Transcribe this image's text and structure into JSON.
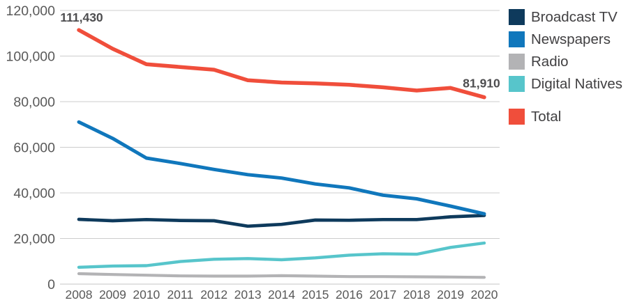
{
  "chart_data": {
    "type": "line",
    "title": "",
    "xlabel": "",
    "ylabel": "",
    "x": [
      "2008",
      "2009",
      "2010",
      "2011",
      "2012",
      "2013",
      "2014",
      "2015",
      "2016",
      "2017",
      "2018",
      "2019",
      "2020"
    ],
    "ylim": [
      0,
      120000
    ],
    "grid": true,
    "legend_position": "right",
    "y_ticks": [
      {
        "value": 0,
        "label": "0"
      },
      {
        "value": 20000,
        "label": "20,000"
      },
      {
        "value": 40000,
        "label": "40,000"
      },
      {
        "value": 60000,
        "label": "60,000"
      },
      {
        "value": 80000,
        "label": "80,000"
      },
      {
        "value": 100000,
        "label": "100,000"
      },
      {
        "value": 120000,
        "label": "120,000"
      }
    ],
    "series": [
      {
        "name": "Broadcast TV",
        "color": "#0E3A5C",
        "group": "component",
        "values": [
          28390,
          27800,
          28300,
          27900,
          27800,
          25400,
          26200,
          28100,
          28000,
          28300,
          28300,
          29500,
          30100
        ]
      },
      {
        "name": "Newspapers",
        "color": "#1077BC",
        "group": "component",
        "values": [
          71070,
          63900,
          55260,
          52900,
          50300,
          48000,
          46500,
          43900,
          42200,
          39000,
          37400,
          34200,
          30820
        ]
      },
      {
        "name": "Radio",
        "color": "#B3B3B5",
        "group": "component",
        "values": [
          4570,
          4200,
          3900,
          3600,
          3500,
          3500,
          3700,
          3500,
          3300,
          3300,
          3200,
          3100,
          2960
        ]
      },
      {
        "name": "Digital Natives",
        "color": "#57C5CB",
        "group": "component",
        "values": [
          7400,
          7900,
          8100,
          9900,
          10900,
          11200,
          10700,
          11500,
          12700,
          13300,
          13100,
          16100,
          18030
        ]
      },
      {
        "name": "Total",
        "color": "#F04E3B",
        "group": "total",
        "values": [
          111430,
          103200,
          96400,
          95200,
          94000,
          89400,
          88400,
          88000,
          87400,
          86300,
          84900,
          86000,
          81910
        ]
      }
    ],
    "annotations": [
      {
        "text": "111,430",
        "series": "Total",
        "x": "2008",
        "value": 111430
      },
      {
        "text": "81,910",
        "series": "Total",
        "x": "2020",
        "value": 81910
      }
    ]
  }
}
